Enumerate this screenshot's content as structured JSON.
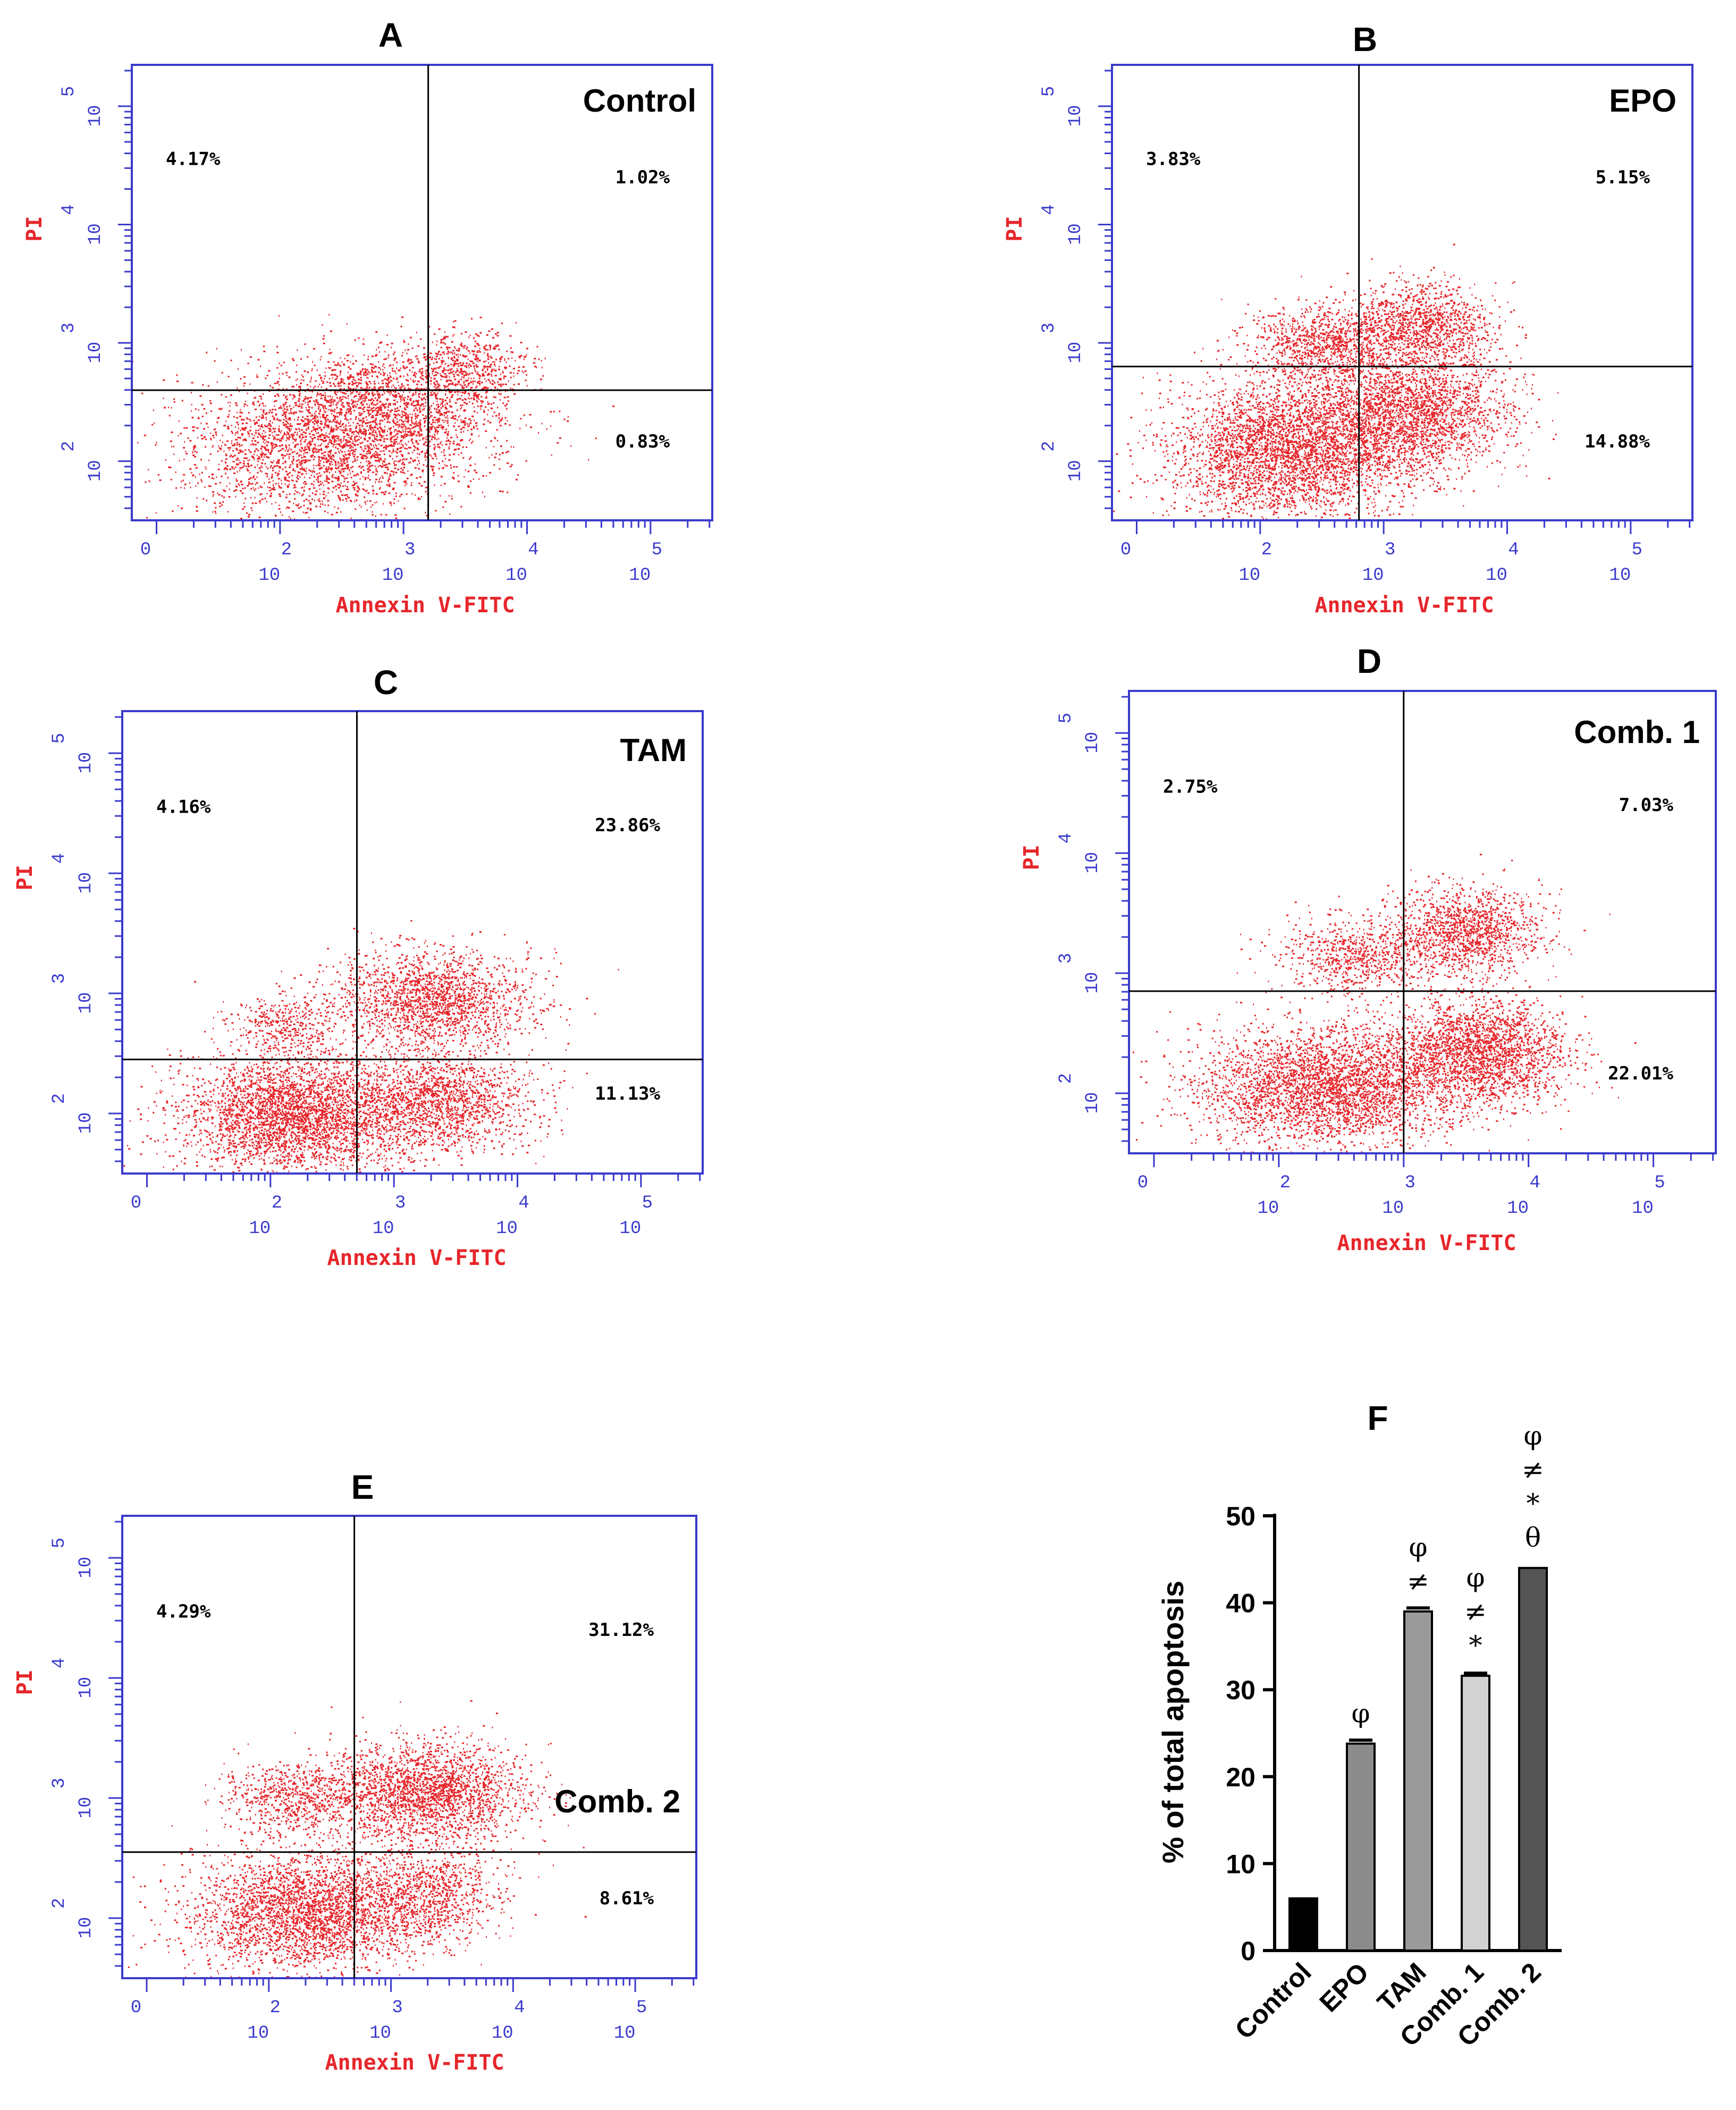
{
  "chart_data": [
    {
      "type": "scatter",
      "panel_label": "A",
      "condition": "Control",
      "xlabel": "Annexin V-FITC",
      "ylabel": "PI",
      "x_ticks": [
        "0",
        "2",
        "3",
        "4",
        "5"
      ],
      "x_tick_base": "10",
      "y_ticks": [
        "2",
        "3",
        "4",
        "5"
      ],
      "y_tick_base": "10",
      "gate": {
        "x": 3.2,
        "y": 2.6
      },
      "quadrants": {
        "upper_left": "4.17%",
        "upper_right": "1.02%",
        "lower_right": "0.83%"
      },
      "populations": [
        {
          "cx": 2.3,
          "cy": 2.1,
          "sx": 0.55,
          "sy": 0.3,
          "n": 5200
        },
        {
          "cx": 2.9,
          "cy": 2.45,
          "sx": 0.5,
          "sy": 0.25,
          "n": 1600
        },
        {
          "cx": 3.5,
          "cy": 2.8,
          "sx": 0.25,
          "sy": 0.15,
          "n": 500
        }
      ]
    },
    {
      "type": "scatter",
      "panel_label": "B",
      "condition": "EPO",
      "xlabel": "Annexin V-FITC",
      "ylabel": "PI",
      "x_ticks": [
        "0",
        "2",
        "3",
        "4",
        "5"
      ],
      "x_tick_base": "10",
      "y_ticks": [
        "2",
        "3",
        "4",
        "5"
      ],
      "y_tick_base": "10",
      "gate": {
        "x": 2.8,
        "y": 2.8
      },
      "quadrants": {
        "upper_left": "3.83%",
        "upper_right": "5.15%",
        "lower_right": "14.88%"
      },
      "populations": [
        {
          "cx": 2.2,
          "cy": 2.1,
          "sx": 0.45,
          "sy": 0.3,
          "n": 4000
        },
        {
          "cx": 3.2,
          "cy": 2.4,
          "sx": 0.4,
          "sy": 0.25,
          "n": 2400
        },
        {
          "cx": 2.5,
          "cy": 3.0,
          "sx": 0.3,
          "sy": 0.15,
          "n": 900
        },
        {
          "cx": 3.3,
          "cy": 3.15,
          "sx": 0.3,
          "sy": 0.18,
          "n": 1200
        }
      ]
    },
    {
      "type": "scatter",
      "panel_label": "C",
      "condition": "TAM",
      "xlabel": "Annexin V-FITC",
      "ylabel": "PI",
      "x_ticks": [
        "0",
        "2",
        "3",
        "4",
        "5"
      ],
      "x_tick_base": "10",
      "y_ticks": [
        "2",
        "3",
        "4",
        "5"
      ],
      "y_tick_base": "10",
      "gate": {
        "x": 2.7,
        "y": 2.45
      },
      "quadrants": {
        "upper_left": "4.16%",
        "upper_right": "23.86%",
        "lower_right": "11.13%"
      },
      "populations": [
        {
          "cx": 2.2,
          "cy": 2.0,
          "sx": 0.45,
          "sy": 0.25,
          "n": 4200
        },
        {
          "cx": 3.4,
          "cy": 2.1,
          "sx": 0.35,
          "sy": 0.2,
          "n": 1500
        },
        {
          "cx": 2.1,
          "cy": 2.75,
          "sx": 0.2,
          "sy": 0.12,
          "n": 350
        },
        {
          "cx": 3.3,
          "cy": 2.95,
          "sx": 0.4,
          "sy": 0.2,
          "n": 1800
        }
      ]
    },
    {
      "type": "scatter",
      "panel_label": "D",
      "condition": "Comb. 1",
      "xlabel": "Annexin V-FITC",
      "ylabel": "PI",
      "x_ticks": [
        "0",
        "2",
        "3",
        "4",
        "5"
      ],
      "x_tick_base": "10",
      "y_ticks": [
        "2",
        "3",
        "4",
        "5"
      ],
      "y_tick_base": "10",
      "gate": {
        "x": 3.0,
        "y": 2.85
      },
      "quadrants": {
        "upper_left": "2.75%",
        "upper_right": "7.03%",
        "lower_right": "22.01%"
      },
      "populations": [
        {
          "cx": 2.4,
          "cy": 2.05,
          "sx": 0.5,
          "sy": 0.25,
          "n": 4000
        },
        {
          "cx": 3.6,
          "cy": 2.35,
          "sx": 0.35,
          "sy": 0.22,
          "n": 2200
        },
        {
          "cx": 2.6,
          "cy": 3.15,
          "sx": 0.3,
          "sy": 0.15,
          "n": 700
        },
        {
          "cx": 3.5,
          "cy": 3.35,
          "sx": 0.3,
          "sy": 0.18,
          "n": 1300
        }
      ]
    },
    {
      "type": "scatter",
      "panel_label": "E",
      "condition": "Comb. 2",
      "xlabel": "Annexin V-FITC",
      "ylabel": "PI",
      "x_ticks": [
        "0",
        "2",
        "3",
        "4",
        "5"
      ],
      "x_tick_base": "10",
      "y_ticks": [
        "2",
        "3",
        "4",
        "5"
      ],
      "y_tick_base": "10",
      "gate": {
        "x": 2.7,
        "y": 2.55
      },
      "quadrants": {
        "upper_left": "4.29%",
        "upper_right": "31.12%",
        "lower_right": "8.61%"
      },
      "populations": [
        {
          "cx": 2.3,
          "cy": 2.05,
          "sx": 0.45,
          "sy": 0.25,
          "n": 3800
        },
        {
          "cx": 3.3,
          "cy": 2.2,
          "sx": 0.3,
          "sy": 0.2,
          "n": 900
        },
        {
          "cx": 2.2,
          "cy": 3.0,
          "sx": 0.3,
          "sy": 0.15,
          "n": 700
        },
        {
          "cx": 3.3,
          "cy": 3.05,
          "sx": 0.4,
          "sy": 0.2,
          "n": 2200
        }
      ]
    },
    {
      "type": "bar",
      "panel_label": "F",
      "ylabel": "% of total apoptosis",
      "ylim": [
        0,
        50
      ],
      "y_ticks": [
        0,
        10,
        20,
        30,
        40,
        50
      ],
      "categories": [
        "Control",
        "EPO",
        "TAM",
        "Comb. 1",
        "Comb. 2"
      ],
      "values": [
        6,
        23.8,
        39,
        31.6,
        44
      ],
      "errors": [
        0,
        0.4,
        0.4,
        0.3,
        0
      ],
      "colors": [
        "#000000",
        "#8c8c8c",
        "#9a9a9a",
        "#d2d2d2",
        "#555555"
      ],
      "significance": [
        [],
        [
          "φ"
        ],
        [
          "φ",
          "≠"
        ],
        [
          "φ",
          "≠",
          "*"
        ],
        [
          "φ",
          "≠",
          "*",
          "θ"
        ]
      ]
    }
  ]
}
